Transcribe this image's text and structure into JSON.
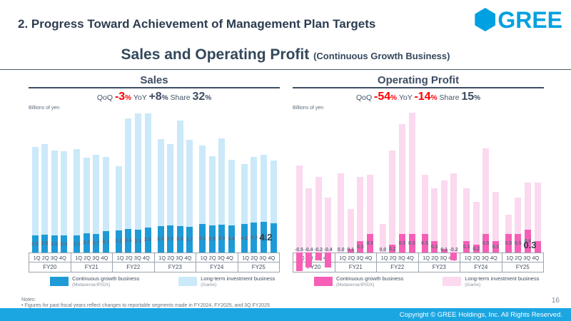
{
  "slide": {
    "header_title": "2. Progress Toward Achievement of Management Plan Targets",
    "logo_text": "GREE",
    "subtitle": "Sales and Operating Profit",
    "subtitle_suffix": "(Continuous Growth Business)",
    "page_number": "16",
    "notes_label": "Notes:",
    "note_bullet": "•",
    "note_1": "Figures for past fiscal years reflect changes to reportable segments made in FY2024, FY2025, and 3Q FY2025",
    "footer_copyright": "Copyright © GREE Holdings, Inc. All Rights Reserved."
  },
  "panels": {
    "sales": {
      "title": "Sales",
      "units_label": "Billions of yen",
      "stats": {
        "qoq_label": "QoQ",
        "qoq_value": "-3",
        "qoq_unit": "%",
        "yoy_label": "YoY",
        "yoy_value": "+8",
        "yoy_unit": "%",
        "share_label": "Share",
        "share_value": "32",
        "share_unit": "%"
      },
      "legend": [
        {
          "label": "Continuous growth business",
          "sublabel": "(Metaverse/IP/DX)"
        },
        {
          "label": "Long-term investment business",
          "sublabel": "(Game)"
        }
      ]
    },
    "operating_profit": {
      "title": "Operating Profit",
      "units_label": "Billions of yen",
      "stats": {
        "qoq_label": "QoQ",
        "qoq_value": "-54",
        "qoq_unit": "%",
        "yoy_label": "YoY",
        "yoy_value": "-14",
        "yoy_unit": "%",
        "share_label": "Share",
        "share_value": "15",
        "share_unit": "%"
      },
      "legend": [
        {
          "label": "Continuous growth business",
          "sublabel": "(Metaverse/IP/DX)"
        },
        {
          "label": "Long-term investment business",
          "sublabel": "(Game)"
        }
      ]
    }
  },
  "chart_data": [
    {
      "id": "sales",
      "type": "bar",
      "stacked": true,
      "title": "Sales",
      "ylabel": "Billions of yen",
      "quarters": [
        "1Q",
        "2Q",
        "3Q",
        "4Q"
      ],
      "fiscal_years": [
        "FY20",
        "FY21",
        "FY22",
        "FY23",
        "FY24",
        "FY25"
      ],
      "ylim": [
        0,
        20
      ],
      "grid": false,
      "legend_position": "bottom",
      "series": [
        {
          "name": "Continuous growth business (Metaverse/IP/DX)",
          "color": "#1E9BD7",
          "values": [
            2.5,
            2.6,
            2.5,
            2.4,
            2.4,
            2.8,
            2.7,
            3.1,
            3.2,
            3.4,
            3.3,
            3.6,
            3.8,
            3.9,
            3.8,
            3.7,
            4.1,
            3.9,
            4.0,
            3.9,
            4.1,
            4.3,
            4.4,
            4.2
          ]
        },
        {
          "name": "Long-term investment business (Game)",
          "color": "#CBE9F9",
          "values": [
            12.6,
            12.9,
            12.1,
            12.1,
            12.4,
            10.8,
            11.3,
            10.6,
            9.1,
            15.8,
            16.6,
            16.3,
            12.4,
            11.6,
            15.1,
            12.4,
            11.2,
            9.9,
            12.3,
            9.4,
            8.6,
            9.4,
            9.6,
            9.0
          ]
        }
      ],
      "labels": [
        "2.5",
        "2.6",
        "2.5",
        "2.4",
        "2.4",
        "2.8",
        "2.7",
        "3.1",
        "3.2",
        "3.4",
        "3.3",
        "3.6",
        "3.8",
        "3.9",
        "3.8",
        "3.7",
        "4.1",
        "3.9",
        "4.0",
        "3.9",
        "4.1",
        "4.3",
        "4.4",
        "4.2"
      ],
      "last_label_emphasis": true
    },
    {
      "id": "op",
      "type": "bar",
      "stacked": true,
      "title": "Operating Profit",
      "ylabel": "Billions of yen",
      "quarters": [
        "1Q",
        "2Q",
        "3Q",
        "4Q"
      ],
      "fiscal_years": [
        "FY20",
        "FY21",
        "FY22",
        "FY23",
        "FY24",
        "FY25"
      ],
      "ylim": [
        -0.5,
        3.7
      ],
      "grid": false,
      "legend_position": "bottom",
      "series": [
        {
          "name": "Continuous growth business (Metaverse/IP/DX)",
          "color": "#F55FB5",
          "values": [
            -0.5,
            -0.4,
            -0.2,
            -0.4,
            0.0,
            0.1,
            0.3,
            0.5,
            0.0,
            0.2,
            0.5,
            0.5,
            0.5,
            0.3,
            0.1,
            -0.2,
            0.3,
            0.2,
            0.5,
            0.3,
            0.5,
            0.5,
            0.6,
            0.3
          ]
        },
        {
          "name": "Long-term investment business (Game)",
          "color": "#FBD9EF",
          "values": [
            2.3,
            1.7,
            2.0,
            1.45,
            2.1,
            1.05,
            1.7,
            1.55,
            0.75,
            2.5,
            2.9,
            3.2,
            1.55,
            1.4,
            1.8,
            2.1,
            1.4,
            1.15,
            2.25,
            1.3,
            0.5,
            0.95,
            1.25,
            1.55
          ]
        }
      ],
      "labels": [
        "-0.5",
        "-0.4",
        "-0.2",
        "-0.4",
        "0.0",
        "0.1",
        "0.3",
        "0.5",
        "0.0",
        "0.2",
        "0.5",
        "0.5",
        "0.5",
        "0.3",
        "0.1",
        "-0.2",
        "0.3",
        "0.2",
        "0.5",
        "0.3",
        "0.5",
        "0.5",
        "0.6",
        "0.3"
      ],
      "last_label_emphasis": true
    }
  ]
}
